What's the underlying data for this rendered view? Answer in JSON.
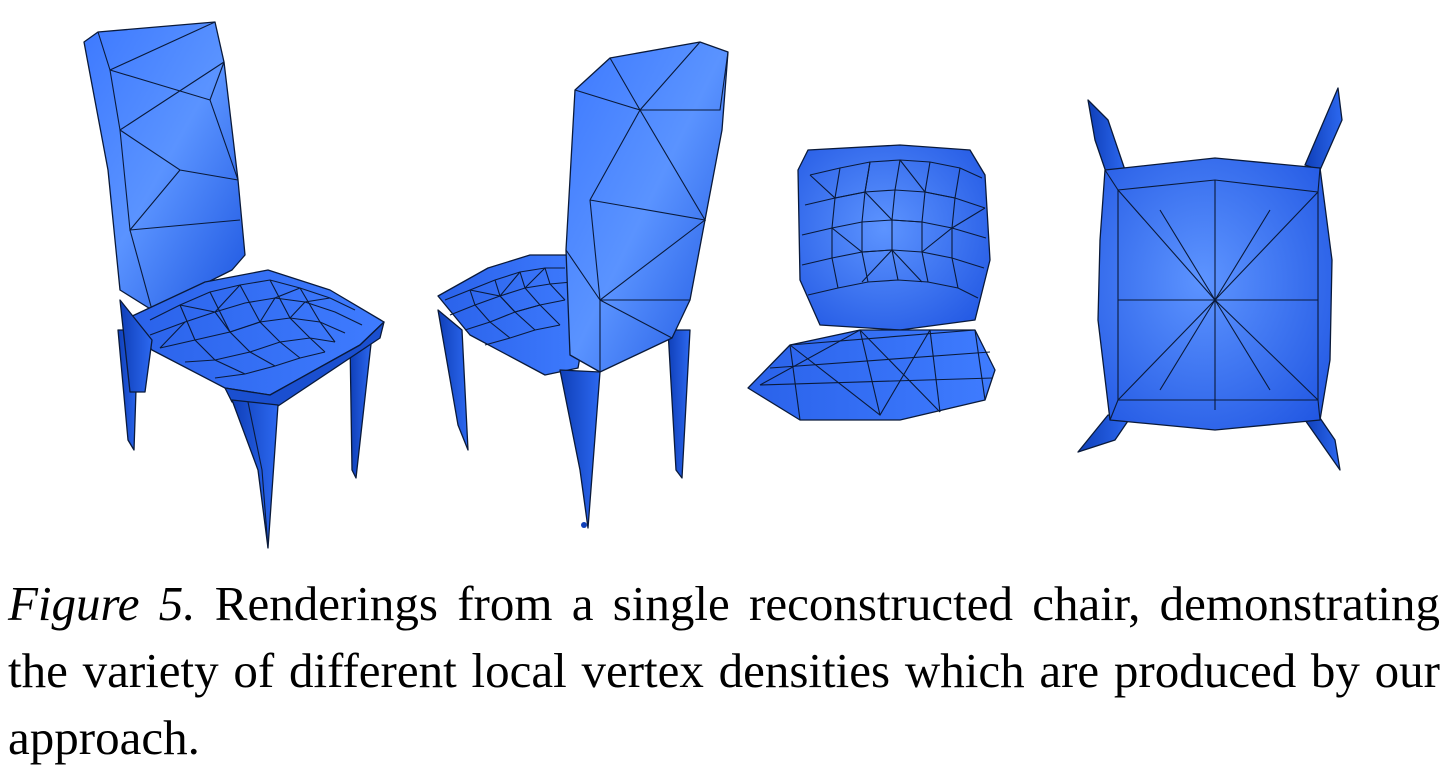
{
  "caption": {
    "label": "Figure 5.",
    "text": "Renderings from a single reconstructed chair, demonstrating the variety of different local vertex densities which are produced by our approach."
  },
  "colors": {
    "mesh_light": "#5b8cff",
    "mesh_mid": "#2f6cf2",
    "mesh_dark": "#1447c8",
    "wire": "#0a1a3a"
  },
  "renderings": [
    {
      "view": "front-left"
    },
    {
      "view": "back-right"
    },
    {
      "view": "front"
    },
    {
      "view": "top-down"
    }
  ]
}
